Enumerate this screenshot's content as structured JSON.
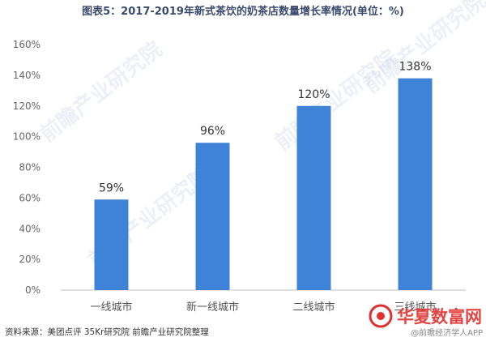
{
  "title": "图表5：2017-2019年新式茶饮的奶茶店数量增长率情况(单位：%)",
  "source": "资料来源：美团点评 35Kr研究院 前瞻产业研究院整理",
  "watermarks": {
    "main": "前瞻产业研究院",
    "logo": "华夏数富网",
    "corner": "@前瞻经济学人APP"
  },
  "colors": {
    "bar": "#3f83d9",
    "axis": "#666666",
    "grid": "#d9d9d9",
    "logo_red": "#e0312f"
  },
  "chart_data": {
    "type": "bar",
    "categories": [
      "一线城市",
      "新一线城市",
      "二线城市",
      "三线城市"
    ],
    "values": [
      59,
      96,
      120,
      138
    ],
    "value_labels": [
      "59%",
      "96%",
      "120%",
      "138%"
    ],
    "y_ticks": [
      "0%",
      "20%",
      "40%",
      "60%",
      "80%",
      "100%",
      "120%",
      "140%",
      "160%"
    ],
    "ylim": [
      0,
      160
    ],
    "grid": false,
    "legend": "none"
  }
}
